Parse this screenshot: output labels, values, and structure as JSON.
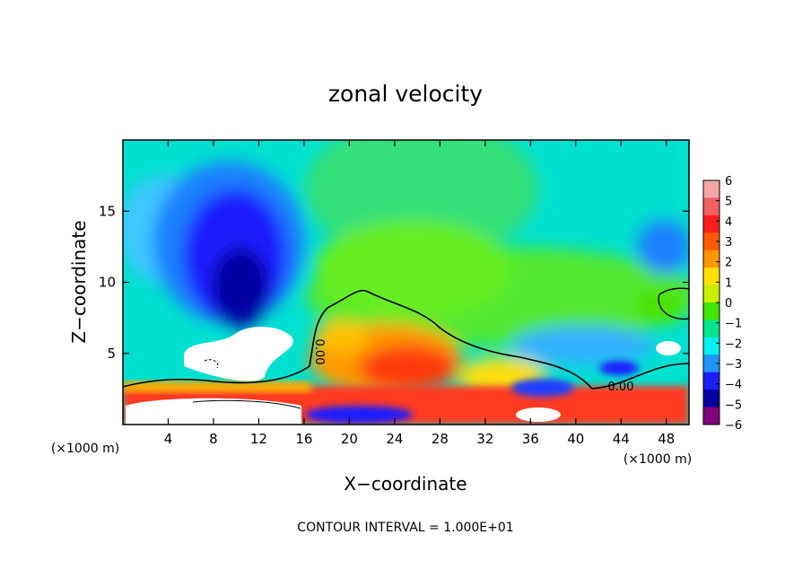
{
  "chart_data": {
    "type": "heatmap",
    "title": "zonal velocity",
    "xlabel": "X−coordinate",
    "ylabel": "Z−coordinate",
    "x_unit_label_left": "(×1000 m)",
    "x_unit_label_right": "(×1000 m)",
    "xlim": [
      0,
      50
    ],
    "ylim": [
      0,
      20
    ],
    "x_ticks": [
      4,
      8,
      12,
      16,
      20,
      24,
      28,
      32,
      36,
      40,
      44,
      48
    ],
    "x_tick_labels": [
      "4",
      "8",
      "12",
      "16",
      "20",
      "24",
      "28",
      "32",
      "36",
      "40",
      "44",
      "48"
    ],
    "y_ticks": [
      5,
      10,
      15
    ],
    "y_tick_labels": [
      "5",
      "10",
      "15"
    ],
    "colorbar": {
      "min": -6,
      "max": 6,
      "tick_values": [
        6,
        5,
        4,
        3,
        2,
        1,
        0,
        -1,
        -2,
        -3,
        -4,
        -5,
        -6
      ],
      "tick_labels": [
        "6",
        "5",
        "4",
        "3",
        "2",
        "1",
        "0",
        "−1",
        "−2",
        "−3",
        "−4",
        "−5",
        "−6"
      ],
      "colors": [
        "#f4a6a6",
        "#f26060",
        "#ff1e1e",
        "#ff5a00",
        "#ff9600",
        "#ffe000",
        "#c8f000",
        "#3ce600",
        "#00e68c",
        "#00f0f0",
        "#1e96ff",
        "#1e1eff",
        "#0000a0",
        "#800080"
      ]
    },
    "contour_labels": [
      "0.00",
      "0.00"
    ],
    "footer": "CONTOUR INTERVAL = 1.000E+01"
  }
}
